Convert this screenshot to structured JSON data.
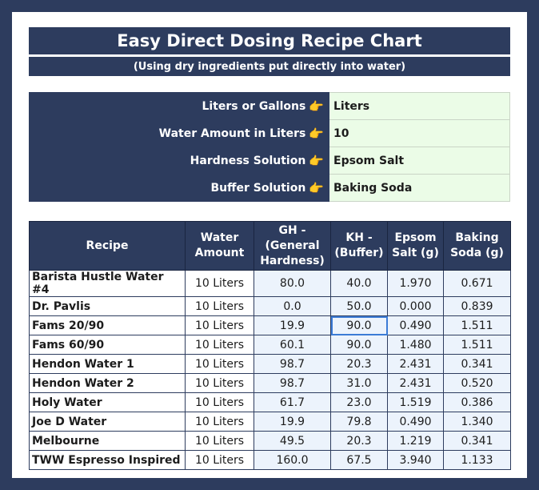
{
  "title": "Easy Direct Dosing Recipe Chart",
  "subtitle": "(Using dry ingredients put directly into water)",
  "settings": [
    {
      "label": "Liters or Gallons",
      "value": "Liters"
    },
    {
      "label": "Water Amount in Liters",
      "value": "10"
    },
    {
      "label": "Hardness Solution",
      "value": "Epsom Salt"
    },
    {
      "label": "Buffer Solution",
      "value": "Baking Soda"
    }
  ],
  "pointer_icon": "👉",
  "table": {
    "headers": [
      "Recipe",
      "Water Amount",
      "GH - (General Hardness)",
      "KH - (Buffer)",
      "Epsom Salt (g)",
      "Baking Soda (g)"
    ],
    "rows": [
      [
        "Barista Hustle Water #4",
        "10 Liters",
        "80.0",
        "40.0",
        "1.970",
        "0.671"
      ],
      [
        "Dr. Pavlis",
        "10 Liters",
        "0.0",
        "50.0",
        "0.000",
        "0.839"
      ],
      [
        "Fams 20/90",
        "10 Liters",
        "19.9",
        "90.0",
        "0.490",
        "1.511"
      ],
      [
        "Fams 60/90",
        "10 Liters",
        "60.1",
        "90.0",
        "1.480",
        "1.511"
      ],
      [
        "Hendon Water 1",
        "10 Liters",
        "98.7",
        "20.3",
        "2.431",
        "0.341"
      ],
      [
        "Hendon Water 2",
        "10 Liters",
        "98.7",
        "31.0",
        "2.431",
        "0.520"
      ],
      [
        "Holy Water",
        "10 Liters",
        "61.7",
        "23.0",
        "1.519",
        "0.386"
      ],
      [
        "Joe D Water",
        "10 Liters",
        "19.9",
        "79.8",
        "0.490",
        "1.340"
      ],
      [
        "Melbourne",
        "10 Liters",
        "49.5",
        "20.3",
        "1.219",
        "0.341"
      ],
      [
        "TWW Espresso Inspired",
        "10 Liters",
        "160.0",
        "67.5",
        "3.940",
        "1.133"
      ]
    ]
  },
  "colors": {
    "navy": "#2d3c5e",
    "input_green": "#ebfce7",
    "cell_blue": "#ecf3fc",
    "selection": "#3b7bd6"
  }
}
